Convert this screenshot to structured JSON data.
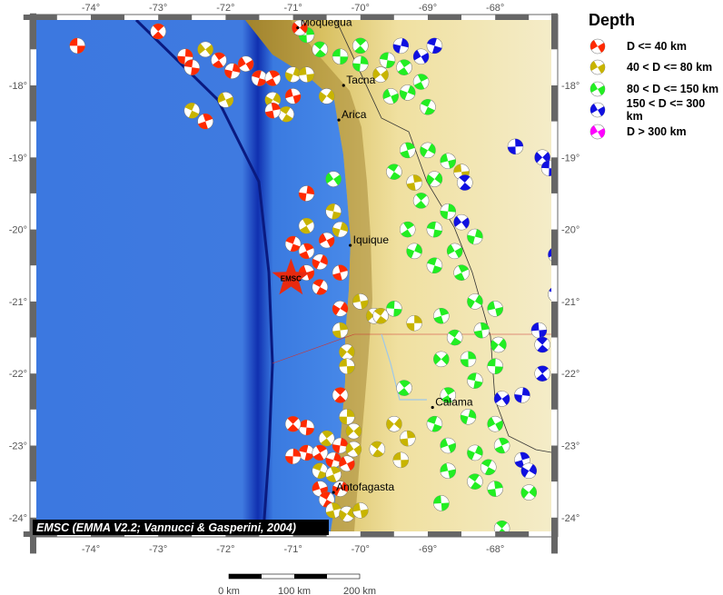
{
  "legend": {
    "title": "Depth",
    "items": [
      {
        "label": "D <= 40 km",
        "color": "#ff2a00"
      },
      {
        "label": "40 < D <= 80 km",
        "color": "#c8b400"
      },
      {
        "label": "80 < D <= 150 km",
        "color": "#22ee22"
      },
      {
        "label": "150 < D <= 300 km",
        "color": "#1010e0"
      },
      {
        "label": "D > 300 km",
        "color": "#ff00ff"
      }
    ]
  },
  "map": {
    "lon_ticks": [
      "-74°",
      "-73°",
      "-72°",
      "-71°",
      "-70°",
      "-69°",
      "-68°"
    ],
    "lat_ticks": [
      "-18°",
      "-19°",
      "-20°",
      "-21°",
      "-22°",
      "-23°",
      "-24°"
    ],
    "lon_range": [
      -74.85,
      -67.15
    ],
    "lat_range": [
      -24.25,
      -17.2
    ],
    "credit": "EMSC (EMMA V2.2; Vannucci & Gasperini, 2004)",
    "epicenter": {
      "label": "EMSC",
      "lon": -71.03,
      "lat": -20.68
    },
    "cities": [
      {
        "name": "Moquegua",
        "lon": -70.93,
        "lat": -17.2
      },
      {
        "name": "Tacna",
        "lon": -70.25,
        "lat": -18.0
      },
      {
        "name": "Arica",
        "lon": -70.32,
        "lat": -18.48
      },
      {
        "name": "Iquique",
        "lon": -70.15,
        "lat": -20.22
      },
      {
        "name": "Antofagasta",
        "lon": -70.4,
        "lat": -23.65
      },
      {
        "name": "Calama",
        "lon": -68.93,
        "lat": -22.47
      }
    ],
    "scale_bar": {
      "labels": [
        "0 km",
        "100 km",
        "200 km"
      ]
    },
    "events": [
      [
        -74.2,
        -17.45,
        0
      ],
      [
        -73.0,
        -17.25,
        0
      ],
      [
        -72.6,
        -17.6,
        0
      ],
      [
        -72.3,
        -17.5,
        1
      ],
      [
        -72.5,
        -17.75,
        0
      ],
      [
        -72.1,
        -17.65,
        0
      ],
      [
        -71.9,
        -17.8,
        0
      ],
      [
        -71.7,
        -17.7,
        0
      ],
      [
        -71.5,
        -17.9,
        0
      ],
      [
        -71.3,
        -17.9,
        0
      ],
      [
        -71.0,
        -17.85,
        1
      ],
      [
        -72.0,
        -18.2,
        1
      ],
      [
        -72.5,
        -18.35,
        1
      ],
      [
        -72.3,
        -18.5,
        0
      ],
      [
        -71.3,
        -18.2,
        1
      ],
      [
        -71.0,
        -18.15,
        0
      ],
      [
        -71.1,
        -18.4,
        1
      ],
      [
        -71.3,
        -18.35,
        0
      ],
      [
        -70.5,
        -18.15,
        1
      ],
      [
        -70.8,
        -17.85,
        1
      ],
      [
        -70.6,
        -17.5,
        2
      ],
      [
        -70.8,
        -17.3,
        2
      ],
      [
        -70.9,
        -17.2,
        0
      ],
      [
        -70.3,
        -17.6,
        2
      ],
      [
        -70.0,
        -17.45,
        2
      ],
      [
        -70.0,
        -17.7,
        2
      ],
      [
        -69.7,
        -17.85,
        1
      ],
      [
        -69.6,
        -17.65,
        2
      ],
      [
        -69.35,
        -17.75,
        2
      ],
      [
        -69.4,
        -17.45,
        3
      ],
      [
        -69.1,
        -17.6,
        3
      ],
      [
        -68.9,
        -17.45,
        3
      ],
      [
        -69.1,
        -17.95,
        2
      ],
      [
        -69.3,
        -18.1,
        2
      ],
      [
        -69.55,
        -18.15,
        2
      ],
      [
        -69.0,
        -18.3,
        2
      ],
      [
        -69.3,
        -18.9,
        2
      ],
      [
        -69.0,
        -18.9,
        2
      ],
      [
        -68.7,
        -19.05,
        2
      ],
      [
        -69.5,
        -19.2,
        2
      ],
      [
        -69.2,
        -19.35,
        1
      ],
      [
        -68.9,
        -19.3,
        2
      ],
      [
        -68.5,
        -19.2,
        1
      ],
      [
        -68.45,
        -19.35,
        3
      ],
      [
        -67.7,
        -18.85,
        3
      ],
      [
        -67.3,
        -19.0,
        3
      ],
      [
        -67.2,
        -19.15,
        3
      ],
      [
        -69.1,
        -19.6,
        2
      ],
      [
        -68.7,
        -19.75,
        2
      ],
      [
        -68.5,
        -19.9,
        3
      ],
      [
        -68.9,
        -20.0,
        2
      ],
      [
        -69.3,
        -20.0,
        2
      ],
      [
        -68.3,
        -20.1,
        2
      ],
      [
        -68.6,
        -20.3,
        2
      ],
      [
        -68.9,
        -20.5,
        2
      ],
      [
        -68.5,
        -20.6,
        2
      ],
      [
        -69.2,
        -20.3,
        2
      ],
      [
        -67.1,
        -20.35,
        3
      ],
      [
        -67.1,
        -20.9,
        3
      ],
      [
        -68.8,
        -21.2,
        2
      ],
      [
        -68.3,
        -21.0,
        2
      ],
      [
        -68.0,
        -21.1,
        2
      ],
      [
        -68.6,
        -21.5,
        2
      ],
      [
        -68.2,
        -21.4,
        2
      ],
      [
        -67.95,
        -21.6,
        2
      ],
      [
        -67.35,
        -21.4,
        3
      ],
      [
        -67.3,
        -21.6,
        3
      ],
      [
        -68.4,
        -21.8,
        2
      ],
      [
        -68.8,
        -21.8,
        2
      ],
      [
        -68.0,
        -21.9,
        2
      ],
      [
        -67.3,
        -22.0,
        3
      ],
      [
        -67.6,
        -22.3,
        3
      ],
      [
        -67.9,
        -22.35,
        3
      ],
      [
        -68.3,
        -22.1,
        2
      ],
      [
        -68.7,
        -22.3,
        2
      ],
      [
        -68.4,
        -22.6,
        2
      ],
      [
        -68.0,
        -22.7,
        2
      ],
      [
        -68.9,
        -22.7,
        2
      ],
      [
        -67.9,
        -23.0,
        2
      ],
      [
        -68.3,
        -23.1,
        2
      ],
      [
        -68.7,
        -23.0,
        2
      ],
      [
        -68.1,
        -23.3,
        2
      ],
      [
        -67.6,
        -23.2,
        3
      ],
      [
        -67.5,
        -23.35,
        3
      ],
      [
        -68.7,
        -23.35,
        2
      ],
      [
        -68.3,
        -23.5,
        2
      ],
      [
        -68.0,
        -23.6,
        2
      ],
      [
        -67.5,
        -23.65,
        2
      ],
      [
        -68.8,
        -23.8,
        2
      ],
      [
        -67.9,
        -24.15,
        2
      ],
      [
        -69.2,
        -21.3,
        1
      ],
      [
        -69.8,
        -21.2,
        1
      ],
      [
        -69.5,
        -21.1,
        2
      ],
      [
        -69.35,
        -22.2,
        2
      ],
      [
        -70.8,
        -19.5,
        0
      ],
      [
        -70.4,
        -19.3,
        2
      ],
      [
        -70.4,
        -19.75,
        1
      ],
      [
        -70.8,
        -19.95,
        1
      ],
      [
        -70.3,
        -20.0,
        1
      ],
      [
        -70.5,
        -20.15,
        0
      ],
      [
        -71.0,
        -20.2,
        0
      ],
      [
        -70.8,
        -20.3,
        0
      ],
      [
        -70.6,
        -20.45,
        0
      ],
      [
        -70.8,
        -20.6,
        0
      ],
      [
        -70.6,
        -20.8,
        0
      ],
      [
        -70.3,
        -20.6,
        0
      ],
      [
        -70.3,
        -21.1,
        0
      ],
      [
        -70.0,
        -21.0,
        1
      ],
      [
        -69.7,
        -21.2,
        1
      ],
      [
        -70.3,
        -21.4,
        1
      ],
      [
        -70.2,
        -21.7,
        1
      ],
      [
        -70.2,
        -21.9,
        1
      ],
      [
        -70.3,
        -22.3,
        0
      ],
      [
        -70.2,
        -22.6,
        1
      ],
      [
        -70.1,
        -22.8,
        1
      ],
      [
        -70.8,
        -22.75,
        0
      ],
      [
        -70.5,
        -22.9,
        1
      ],
      [
        -70.3,
        -23.0,
        0
      ],
      [
        -70.1,
        -23.05,
        1
      ],
      [
        -70.8,
        -23.1,
        0
      ],
      [
        -70.6,
        -23.1,
        0
      ],
      [
        -70.4,
        -23.2,
        0
      ],
      [
        -70.2,
        -23.25,
        0
      ],
      [
        -70.6,
        -23.35,
        1
      ],
      [
        -70.4,
        -23.4,
        1
      ],
      [
        -70.3,
        -23.6,
        0
      ],
      [
        -70.6,
        -23.6,
        0
      ],
      [
        -70.5,
        -23.75,
        0
      ],
      [
        -70.4,
        -23.9,
        1
      ],
      [
        -70.2,
        -23.95,
        1
      ],
      [
        -70.0,
        -23.9,
        1
      ],
      [
        -69.75,
        -23.05,
        1
      ],
      [
        -69.3,
        -22.9,
        1
      ],
      [
        -69.5,
        -22.7,
        1
      ],
      [
        -69.4,
        -23.2,
        1
      ],
      [
        -71.0,
        -22.7,
        0
      ],
      [
        -71.0,
        -23.15,
        0
      ]
    ]
  }
}
